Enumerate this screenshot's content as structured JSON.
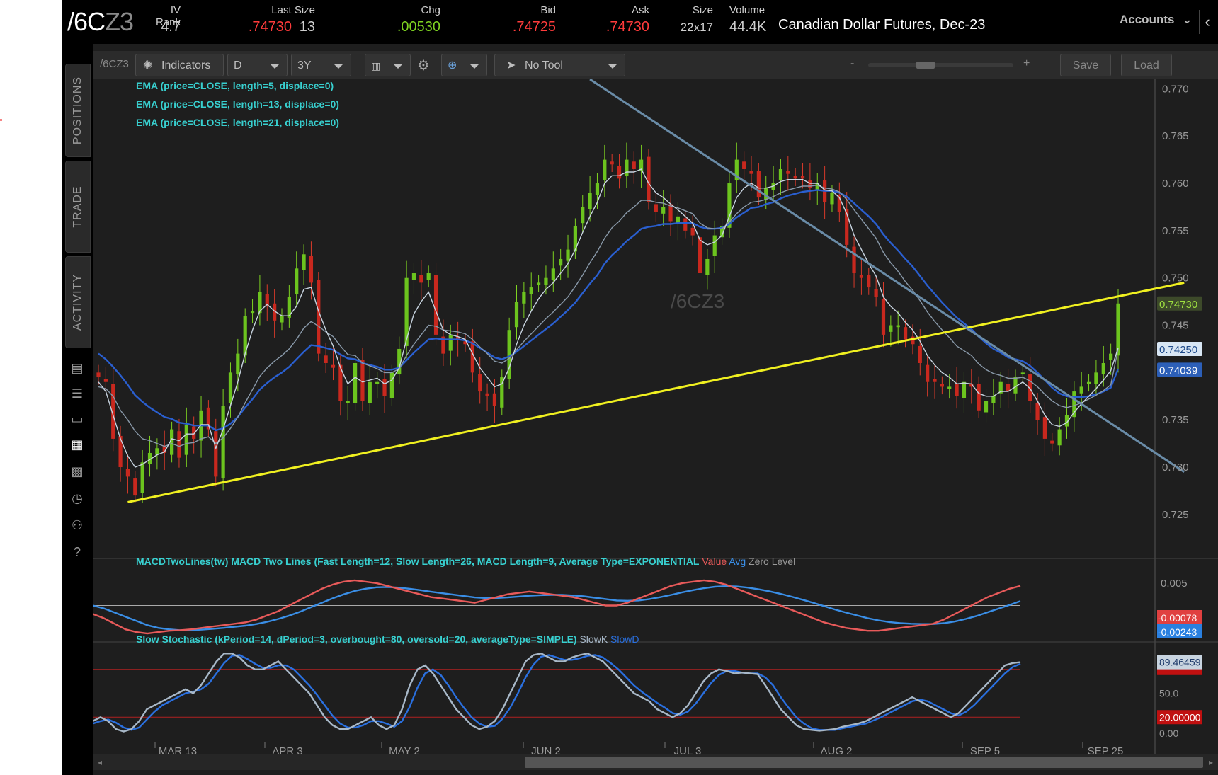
{
  "header": {
    "symbol_main": "/6C",
    "symbol_dim": "Z3",
    "fields": [
      {
        "label": "IV Rank",
        "value": "4.7",
        "color": "#cfcfcf"
      },
      {
        "label": "Last Size",
        "value": ".74730",
        "value2": "13",
        "color": "#ff3b3b"
      },
      {
        "label": "Chg",
        "value": ".00530",
        "color": "#7ed321"
      },
      {
        "label": "Bid",
        "value": ".74725",
        "color": "#ff3b3b"
      },
      {
        "label": "Ask",
        "value": ".74730",
        "color": "#ff3b3b"
      },
      {
        "label": "Size",
        "value": "22x17",
        "color": "#cfcfcf"
      },
      {
        "label": "Volume",
        "value": "44.4K",
        "color": "#cfcfcf"
      }
    ],
    "description": "Canadian Dollar Futures, Dec-23",
    "accounts_label": "Accounts"
  },
  "sidebar": {
    "tabs": [
      "POSITIONS",
      "TRADE",
      "ACTIVITY"
    ]
  },
  "toolbar": {
    "symbol": "/6CZ3",
    "indicators": "Indicators",
    "aggregation": "D",
    "range": "3Y",
    "tool": "No Tool",
    "zoom_minus": "-",
    "zoom_plus": "+",
    "save": "Save",
    "load": "Load"
  },
  "studies": {
    "ema": [
      "EMA (price=CLOSE, length=5, displace=0)",
      "EMA (price=CLOSE, length=13, displace=0)",
      "EMA (price=CLOSE, length=21, displace=0)"
    ],
    "macd": {
      "title": "MACDTwoLines(tw) MACD Two Lines (Fast Length=12, Slow Length=26, MACD Length=9, Average Type=EXPONENTIAL",
      "value": "Value",
      "avg": "Avg",
      "zero": "Zero Level"
    },
    "stoch": {
      "title": "Slow Stochastic (kPeriod=14, dPeriod=3, overbought=80, oversold=20, averageType=SIMPLE)",
      "slowk": "SlowK",
      "slowd": "SlowD"
    },
    "watermark": "/6CZ3"
  },
  "chart_data": {
    "type": "candlestick",
    "symbol": "/6CZ3",
    "x_labels": [
      "MAR 13",
      "APR 3",
      "MAY 2",
      "JUN 2",
      "JUL 3",
      "AUG 2",
      "SEP 5",
      "SEP 25"
    ],
    "y_ticks": [
      0.77,
      0.765,
      0.76,
      0.755,
      0.75,
      0.745,
      0.74,
      0.735,
      0.73,
      0.725
    ],
    "ylim": [
      0.7205,
      0.771
    ],
    "price_labels": {
      "last": "0.74730",
      "ema13": "0.74250",
      "ema21": "0.74039"
    },
    "closes": [
      0.7395,
      0.739,
      0.733,
      0.73,
      0.729,
      0.727,
      0.7305,
      0.7315,
      0.732,
      0.7315,
      0.734,
      0.731,
      0.7345,
      0.733,
      0.736,
      0.734,
      0.729,
      0.7365,
      0.74,
      0.742,
      0.746,
      0.7465,
      0.7485,
      0.747,
      0.7455,
      0.746,
      0.748,
      0.751,
      0.7525,
      0.7495,
      0.742,
      0.741,
      0.7405,
      0.737,
      0.737,
      0.741,
      0.737,
      0.739,
      0.739,
      0.7375,
      0.74,
      0.7425,
      0.75,
      0.7505,
      0.7495,
      0.7505,
      0.744,
      0.742,
      0.744,
      0.7435,
      0.743,
      0.74,
      0.738,
      0.7375,
      0.7365,
      0.7395,
      0.7445,
      0.7475,
      0.7485,
      0.749,
      0.7495,
      0.75,
      0.751,
      0.752,
      0.753,
      0.7555,
      0.7575,
      0.759,
      0.76,
      0.7625,
      0.762,
      0.7605,
      0.7625,
      0.7615,
      0.7625,
      0.758,
      0.757,
      0.7575,
      0.756,
      0.7565,
      0.755,
      0.7545,
      0.7505,
      0.752,
      0.7545,
      0.7555,
      0.76,
      0.7625,
      0.7615,
      0.761,
      0.7585,
      0.7595,
      0.76,
      0.7615,
      0.761,
      0.7605,
      0.7605,
      0.7595,
      0.76,
      0.758,
      0.759,
      0.757,
      0.7535,
      0.7505,
      0.75,
      0.749,
      0.748,
      0.744,
      0.745,
      0.745,
      0.7435,
      0.743,
      0.741,
      0.739,
      0.739,
      0.7385,
      0.7385,
      0.7375,
      0.739,
      0.7385,
      0.736,
      0.737,
      0.7375,
      0.739,
      0.738,
      0.7395,
      0.74,
      0.737,
      0.735,
      0.733,
      0.7325,
      0.734,
      0.7355,
      0.738,
      0.7385,
      0.739,
      0.74,
      0.741,
      0.742,
      0.7473
    ],
    "ema5": [
      0.739,
      0.738,
      0.7355,
      0.733,
      0.7312,
      0.73,
      0.7303,
      0.7308,
      0.7313,
      0.7316,
      0.733,
      0.7328,
      0.7335,
      0.7335,
      0.7345,
      0.7345,
      0.732,
      0.734,
      0.7365,
      0.739,
      0.742,
      0.7445,
      0.7465,
      0.7472,
      0.7465,
      0.746,
      0.746,
      0.747,
      0.7488,
      0.749,
      0.7465,
      0.7445,
      0.7428,
      0.7405,
      0.7388,
      0.7395,
      0.739,
      0.7392,
      0.7394,
      0.7388,
      0.7392,
      0.7405,
      0.7435,
      0.7462,
      0.7475,
      0.7485,
      0.7465,
      0.7445,
      0.744,
      0.7438,
      0.7435,
      0.742,
      0.7405,
      0.7395,
      0.7385,
      0.7388,
      0.7405,
      0.743,
      0.745,
      0.7465,
      0.7478,
      0.7488,
      0.7495,
      0.7505,
      0.7515,
      0.753,
      0.7548,
      0.7565,
      0.758,
      0.76,
      0.7608,
      0.7608,
      0.7612,
      0.7612,
      0.7615,
      0.76,
      0.759,
      0.7585,
      0.7578,
      0.7572,
      0.7565,
      0.7558,
      0.754,
      0.7535,
      0.7538,
      0.7545,
      0.7565,
      0.7585,
      0.7595,
      0.76,
      0.7595,
      0.7595,
      0.7597,
      0.7602,
      0.7604,
      0.7604,
      0.7604,
      0.76,
      0.76,
      0.7593,
      0.7592,
      0.7585,
      0.7568,
      0.7545,
      0.753,
      0.7515,
      0.7502,
      0.748,
      0.747,
      0.7463,
      0.7453,
      0.7445,
      0.7433,
      0.7418,
      0.7408,
      0.74,
      0.7395,
      0.7388,
      0.7389,
      0.7388,
      0.7378,
      0.7375,
      0.7375,
      0.738,
      0.738,
      0.7385,
      0.739,
      0.7383,
      0.737,
      0.7355,
      0.7345,
      0.7343,
      0.7347,
      0.7358,
      0.7367,
      0.7375,
      0.7383,
      0.7392,
      0.7402,
      0.7426
    ],
    "ema13": [
      0.7385,
      0.7383,
      0.7375,
      0.736,
      0.735,
      0.7338,
      0.733,
      0.7328,
      0.7325,
      0.7322,
      0.7325,
      0.7322,
      0.7325,
      0.7326,
      0.733,
      0.7332,
      0.7325,
      0.7331,
      0.7341,
      0.7353,
      0.7368,
      0.7382,
      0.7396,
      0.7405,
      0.7412,
      0.7418,
      0.7425,
      0.7435,
      0.7447,
      0.7454,
      0.7449,
      0.7443,
      0.7438,
      0.7428,
      0.7419,
      0.7418,
      0.741,
      0.7407,
      0.7404,
      0.74,
      0.74,
      0.7404,
      0.7418,
      0.743,
      0.744,
      0.745,
      0.7449,
      0.7445,
      0.7444,
      0.7443,
      0.7441,
      0.7435,
      0.7427,
      0.742,
      0.7412,
      0.741,
      0.7415,
      0.7424,
      0.7433,
      0.7441,
      0.7449,
      0.7457,
      0.7464,
      0.7472,
      0.748,
      0.7491,
      0.7503,
      0.7516,
      0.7528,
      0.7542,
      0.7553,
      0.756,
      0.7569,
      0.7575,
      0.7582,
      0.7582,
      0.758,
      0.7579,
      0.7576,
      0.7574,
      0.7571,
      0.7568,
      0.7558,
      0.7553,
      0.7552,
      0.7552,
      0.7559,
      0.7568,
      0.7575,
      0.758,
      0.7581,
      0.7583,
      0.7586,
      0.759,
      0.7593,
      0.7595,
      0.7597,
      0.7597,
      0.7598,
      0.7595,
      0.7594,
      0.7591,
      0.7583,
      0.7572,
      0.7562,
      0.7552,
      0.7542,
      0.7527,
      0.7516,
      0.7507,
      0.7496,
      0.7487,
      0.7476,
      0.7464,
      0.7454,
      0.7445,
      0.7437,
      0.7428,
      0.7423,
      0.7418,
      0.7409,
      0.7403,
      0.7399,
      0.7397,
      0.7394,
      0.7394,
      0.7395,
      0.7391,
      0.7385,
      0.7377,
      0.737,
      0.7365,
      0.7363,
      0.7365,
      0.7368,
      0.7372,
      0.7376,
      0.7381,
      0.7387,
      0.7425
    ],
    "ema21": [
      0.742,
      0.7414,
      0.7406,
      0.7397,
      0.7387,
      0.7376,
      0.7369,
      0.7363,
      0.7358,
      0.7353,
      0.7351,
      0.7347,
      0.7346,
      0.7344,
      0.7344,
      0.7344,
      0.7339,
      0.7341,
      0.7346,
      0.7353,
      0.7363,
      0.7372,
      0.7382,
      0.7389,
      0.7395,
      0.74,
      0.7406,
      0.7414,
      0.7422,
      0.7429,
      0.7428,
      0.7426,
      0.7424,
      0.7419,
      0.7415,
      0.7414,
      0.741,
      0.7408,
      0.7406,
      0.7403,
      0.7403,
      0.7405,
      0.7413,
      0.7421,
      0.7428,
      0.7435,
      0.7436,
      0.7435,
      0.7435,
      0.7435,
      0.7434,
      0.7431,
      0.7426,
      0.7421,
      0.7416,
      0.7414,
      0.7417,
      0.7422,
      0.7428,
      0.7434,
      0.744,
      0.7446,
      0.7452,
      0.7459,
      0.7466,
      0.7474,
      0.7484,
      0.7494,
      0.7503,
      0.7515,
      0.7524,
      0.7531,
      0.7539,
      0.7545,
      0.7552,
      0.7554,
      0.7555,
      0.7557,
      0.7557,
      0.7558,
      0.7558,
      0.7558,
      0.7554,
      0.7552,
      0.7552,
      0.7553,
      0.7557,
      0.7564,
      0.7569,
      0.7574,
      0.7575,
      0.7578,
      0.758,
      0.7584,
      0.7587,
      0.7589,
      0.7591,
      0.7592,
      0.7593,
      0.7592,
      0.7592,
      0.759,
      0.7586,
      0.7579,
      0.7572,
      0.7565,
      0.7557,
      0.7546,
      0.7537,
      0.7529,
      0.752,
      0.7512,
      0.7502,
      0.7492,
      0.7483,
      0.7474,
      0.7466,
      0.7458,
      0.7452,
      0.7446,
      0.7438,
      0.7431,
      0.7425,
      0.7421,
      0.7416,
      0.7414,
      0.7412,
      0.7407,
      0.74,
      0.7392,
      0.7384,
      0.7378,
      0.7375,
      0.7374,
      0.7374,
      0.7375,
      0.7377,
      0.738,
      0.7384,
      0.7404
    ],
    "support_line": {
      "start": {
        "bar": 4,
        "price": 0.7263
      },
      "end": {
        "bar": 148,
        "price": 0.7495
      }
    },
    "resistance_line": {
      "start": {
        "bar": 67,
        "price": 0.771
      },
      "end": {
        "bar": 148,
        "price": 0.7295
      }
    },
    "macd": {
      "labels": {
        "value": "-0.00078",
        "avg": "-0.00243",
        "top": "0.005"
      },
      "value": [
        -0.2,
        -0.35,
        -0.55,
        -0.75,
        -0.85,
        -0.9,
        -0.85,
        -0.8,
        -0.78,
        -0.75,
        -0.7,
        -0.65,
        -0.6,
        -0.55,
        -0.5,
        -0.4,
        -0.25,
        -0.1,
        0.1,
        0.3,
        0.5,
        0.7,
        0.85,
        0.95,
        1.0,
        0.95,
        0.9,
        0.8,
        0.7,
        0.6,
        0.5,
        0.4,
        0.35,
        0.3,
        0.25,
        0.2,
        0.3,
        0.4,
        0.5,
        0.55,
        0.6,
        0.55,
        0.5,
        0.45,
        0.4,
        0.3,
        0.2,
        0.1,
        0.1,
        0.2,
        0.35,
        0.5,
        0.65,
        0.8,
        0.9,
        0.95,
        1.0,
        0.95,
        0.85,
        0.7,
        0.55,
        0.4,
        0.25,
        0.1,
        -0.05,
        -0.2,
        -0.35,
        -0.5,
        -0.6,
        -0.7,
        -0.75,
        -0.8,
        -0.8,
        -0.75,
        -0.7,
        -0.65,
        -0.6,
        -0.55,
        -0.4,
        -0.2,
        0.0,
        0.2,
        0.4,
        0.55,
        0.7,
        0.8
      ],
      "avg": [
        0.1,
        0.0,
        -0.15,
        -0.3,
        -0.45,
        -0.6,
        -0.7,
        -0.75,
        -0.78,
        -0.78,
        -0.76,
        -0.73,
        -0.7,
        -0.66,
        -0.62,
        -0.56,
        -0.48,
        -0.38,
        -0.26,
        -0.12,
        0.04,
        0.2,
        0.36,
        0.5,
        0.62,
        0.7,
        0.75,
        0.76,
        0.74,
        0.7,
        0.65,
        0.59,
        0.54,
        0.49,
        0.44,
        0.39,
        0.37,
        0.37,
        0.39,
        0.42,
        0.45,
        0.47,
        0.48,
        0.48,
        0.46,
        0.43,
        0.38,
        0.33,
        0.28,
        0.27,
        0.28,
        0.33,
        0.4,
        0.48,
        0.57,
        0.65,
        0.72,
        0.77,
        0.79,
        0.78,
        0.74,
        0.68,
        0.61,
        0.52,
        0.42,
        0.31,
        0.2,
        0.08,
        -0.04,
        -0.15,
        -0.25,
        -0.35,
        -0.43,
        -0.49,
        -0.53,
        -0.55,
        -0.56,
        -0.56,
        -0.53,
        -0.47,
        -0.38,
        -0.27,
        -0.14,
        -0.01,
        0.12,
        0.26
      ]
    },
    "stochastic": {
      "labels": {
        "k": "89.46459",
        "overbought": "80",
        "oversold": "20.00000",
        "mid": "50.0",
        "zero": "0.00"
      },
      "ylim": [
        -10,
        110
      ],
      "k": [
        15,
        20,
        15,
        5,
        2,
        5,
        15,
        30,
        35,
        40,
        45,
        50,
        55,
        50,
        60,
        75,
        90,
        100,
        100,
        95,
        85,
        80,
        80,
        85,
        90,
        80,
        70,
        60,
        50,
        35,
        20,
        10,
        5,
        5,
        10,
        15,
        20,
        10,
        5,
        10,
        30,
        60,
        80,
        85,
        75,
        60,
        45,
        30,
        20,
        10,
        5,
        8,
        15,
        30,
        50,
        70,
        90,
        98,
        100,
        95,
        90,
        90,
        95,
        98,
        100,
        95,
        90,
        80,
        70,
        60,
        50,
        45,
        40,
        30,
        25,
        20,
        25,
        35,
        50,
        65,
        75,
        80,
        78,
        75,
        76,
        75,
        74,
        60,
        45,
        30,
        20,
        10,
        5,
        4,
        3,
        4,
        5,
        8,
        10,
        12,
        15,
        20,
        25,
        30,
        35,
        40,
        45,
        40,
        35,
        30,
        25,
        20,
        25,
        35,
        45,
        55,
        65,
        75,
        85,
        88,
        89
      ],
      "d": [
        12,
        15,
        17,
        13,
        7,
        4,
        7,
        17,
        27,
        35,
        40,
        45,
        50,
        52,
        55,
        62,
        75,
        88,
        97,
        98,
        93,
        87,
        82,
        82,
        85,
        85,
        80,
        70,
        60,
        48,
        35,
        22,
        12,
        7,
        7,
        10,
        15,
        15,
        12,
        8,
        15,
        33,
        57,
        75,
        80,
        73,
        60,
        45,
        32,
        20,
        12,
        8,
        9,
        18,
        32,
        50,
        70,
        86,
        96,
        98,
        95,
        92,
        92,
        94,
        97,
        98,
        95,
        88,
        80,
        70,
        60,
        52,
        45,
        38,
        32,
        25,
        23,
        27,
        37,
        50,
        63,
        73,
        78,
        78,
        76,
        75,
        75,
        70,
        60,
        45,
        32,
        20,
        12,
        6,
        4,
        4,
        4,
        6,
        8,
        10,
        12,
        16,
        20,
        25,
        30,
        35,
        40,
        42,
        40,
        35,
        30,
        25,
        22,
        27,
        35,
        45,
        55,
        65,
        75,
        83,
        87
      ]
    }
  }
}
